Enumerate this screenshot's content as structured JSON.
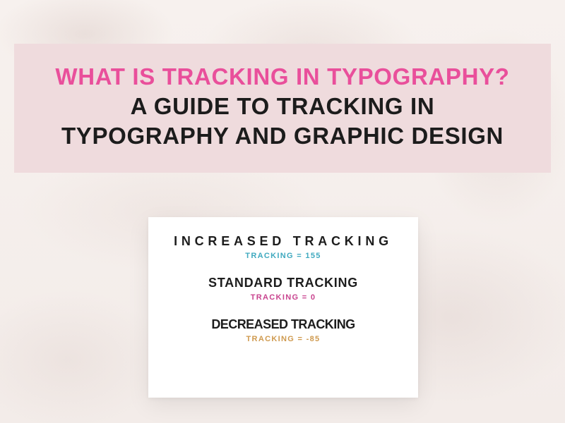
{
  "background_base": "#f5efec",
  "title_box": {
    "bg": "#efdbdd",
    "line1": {
      "text": "WHAT IS TRACKING IN TYPOGRAPHY?",
      "color": "#e94f9b"
    },
    "line2": {
      "text": "A GUIDE TO TRACKING IN",
      "color": "#1c1c1c"
    },
    "line3": {
      "text": "TYPOGRAPHY AND GRAPHIC DESIGN",
      "color": "#1c1c1c"
    }
  },
  "samples": {
    "increased": {
      "label": "INCREASED TRACKING",
      "letter_spacing_em": 0.32,
      "sub": "TRACKING = 155",
      "sub_color": "#3fa9bf"
    },
    "standard": {
      "label": "STANDARD TRACKING",
      "letter_spacing_em": 0.04,
      "sub": "TRACKING = 0",
      "sub_color": "#c9448f"
    },
    "decreased": {
      "label": "DECREASED TRACKING",
      "letter_spacing_em": -0.03,
      "sub": "TRACKING = -85",
      "sub_color": "#cf9a4f"
    }
  }
}
